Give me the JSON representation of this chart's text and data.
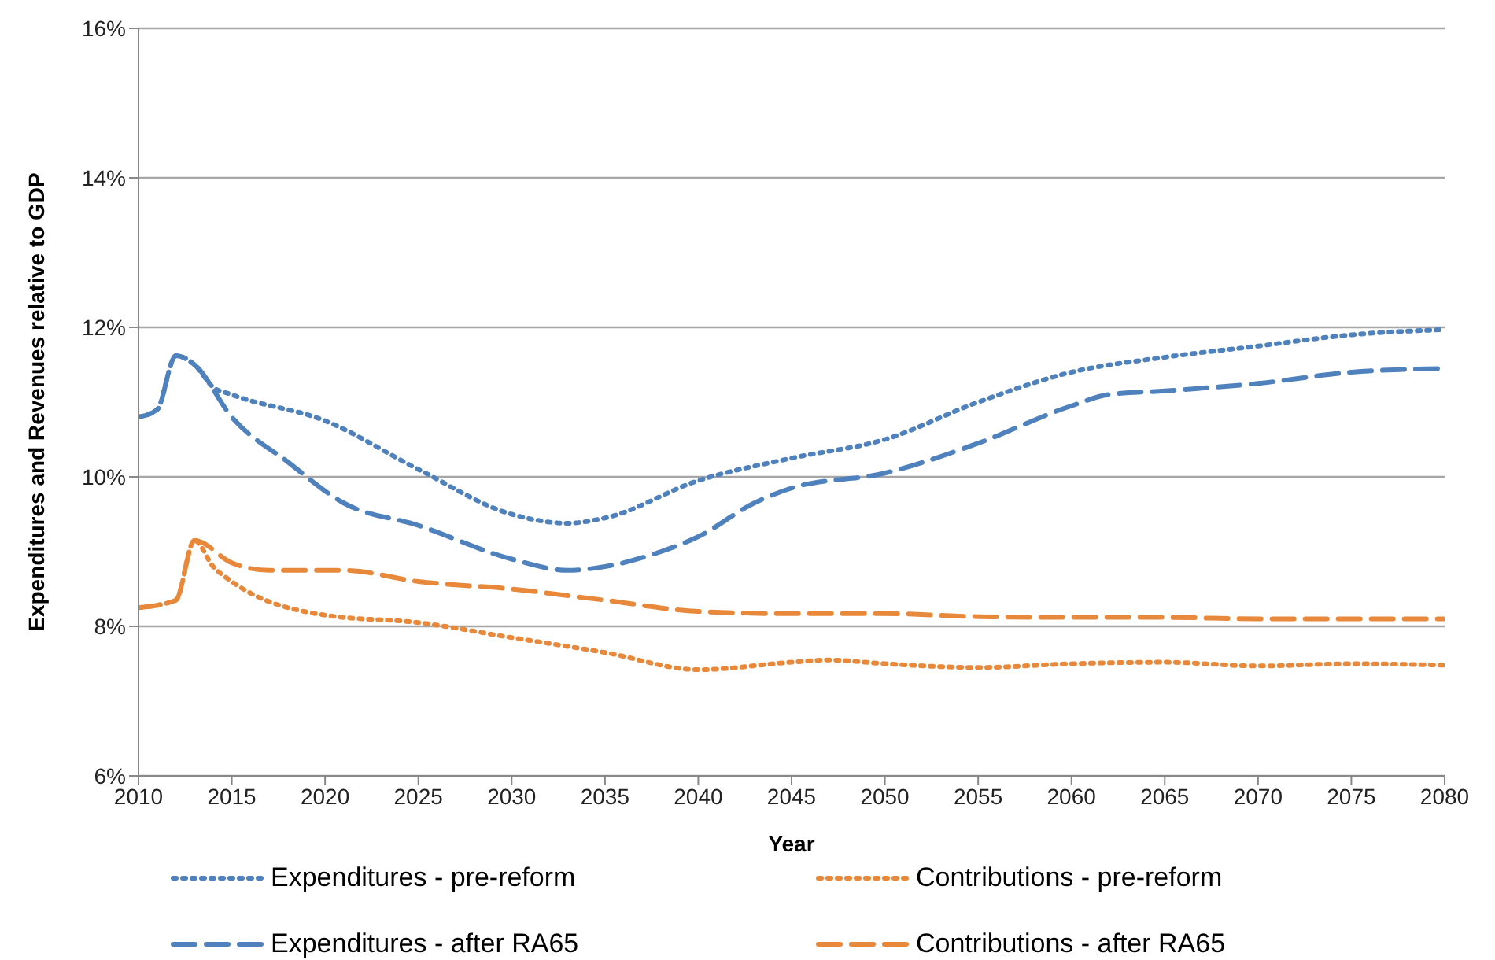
{
  "chart_data": {
    "type": "line",
    "xlabel": "Year",
    "ylabel": "Expenditures and Revenues relative to GDP",
    "xlim": [
      2010,
      2080
    ],
    "xticks": [
      2010,
      2015,
      2020,
      2025,
      2030,
      2035,
      2040,
      2045,
      2050,
      2055,
      2060,
      2065,
      2070,
      2075,
      2080
    ],
    "ylim": [
      6,
      16
    ],
    "yticks": [
      {
        "value": 6,
        "label": "6%"
      },
      {
        "value": 8,
        "label": "8%"
      },
      {
        "value": 10,
        "label": "10%"
      },
      {
        "value": 12,
        "label": "12%"
      },
      {
        "value": 14,
        "label": "14%"
      },
      {
        "value": 16,
        "label": "16%"
      }
    ],
    "grid": "y",
    "legend": "bottom",
    "marker": "none",
    "series": [
      {
        "name": "Expenditures - pre-reform",
        "color": "#4f81bd",
        "line_style": "dotted",
        "x": [
          2010,
          2011,
          2012,
          2013,
          2014,
          2015,
          2020,
          2025,
          2030,
          2033,
          2035,
          2040,
          2045,
          2050,
          2055,
          2060,
          2065,
          2070,
          2075,
          2080
        ],
        "values": [
          10.8,
          10.9,
          11.62,
          11.5,
          11.2,
          11.1,
          10.75,
          10.1,
          9.5,
          9.38,
          9.45,
          9.95,
          10.25,
          10.5,
          11.0,
          11.4,
          11.6,
          11.75,
          11.9,
          11.97
        ]
      },
      {
        "name": "Contributions - pre-reform",
        "color": "#e8883a",
        "line_style": "dotted",
        "x": [
          2010,
          2012,
          2013,
          2014,
          2015,
          2020,
          2025,
          2030,
          2035,
          2040,
          2045,
          2047,
          2050,
          2055,
          2060,
          2065,
          2070,
          2075,
          2080
        ],
        "values": [
          8.25,
          8.35,
          9.15,
          8.8,
          8.6,
          8.15,
          8.05,
          7.85,
          7.65,
          7.42,
          7.52,
          7.55,
          7.5,
          7.45,
          7.5,
          7.52,
          7.47,
          7.5,
          7.48
        ]
      },
      {
        "name": "Expenditures - after RA65",
        "color": "#4f81bd",
        "line_style": "dashed",
        "x": [
          2010,
          2011,
          2012,
          2013,
          2015,
          2018,
          2021,
          2025,
          2030,
          2033,
          2035,
          2038,
          2040,
          2043,
          2045,
          2050,
          2055,
          2060,
          2062,
          2065,
          2070,
          2075,
          2080
        ],
        "values": [
          10.8,
          10.9,
          11.62,
          11.5,
          10.8,
          10.2,
          9.65,
          9.35,
          8.9,
          8.75,
          8.8,
          9.0,
          9.2,
          9.65,
          9.85,
          10.05,
          10.45,
          10.95,
          11.1,
          11.15,
          11.25,
          11.4,
          11.45
        ]
      },
      {
        "name": "Contributions - after RA65",
        "color": "#e8883a",
        "line_style": "dashed",
        "x": [
          2010,
          2012,
          2013,
          2015,
          2017,
          2021,
          2025,
          2030,
          2035,
          2040,
          2045,
          2050,
          2055,
          2060,
          2065,
          2070,
          2080
        ],
        "values": [
          8.25,
          8.35,
          9.15,
          8.85,
          8.75,
          8.75,
          8.6,
          8.5,
          8.35,
          8.2,
          8.17,
          8.17,
          8.13,
          8.12,
          8.12,
          8.1,
          8.1
        ]
      }
    ]
  }
}
